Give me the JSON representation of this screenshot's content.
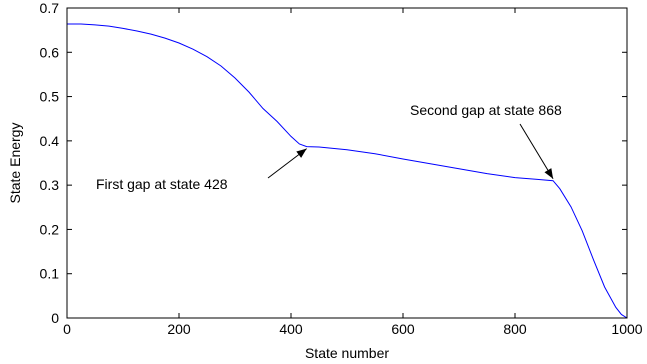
{
  "chart_data": {
    "type": "line",
    "title": "",
    "xlabel": "State number",
    "ylabel": "State Energy",
    "xlim": [
      0,
      1000
    ],
    "ylim": [
      0,
      0.7
    ],
    "xticks": [
      0,
      200,
      400,
      600,
      800,
      1000
    ],
    "yticks": [
      0,
      0.1,
      0.2,
      0.3,
      0.4,
      0.5,
      0.6,
      0.7
    ],
    "xtick_labels": [
      "0",
      "200",
      "400",
      "600",
      "800",
      "1000"
    ],
    "ytick_labels": [
      "0",
      "0.1",
      "0.2",
      "0.3",
      "0.4",
      "0.5",
      "0.6",
      "0.7"
    ],
    "grid": false,
    "line_color": "#0000ff",
    "series": [
      {
        "x": [
          0,
          25,
          50,
          75,
          100,
          125,
          150,
          175,
          200,
          225,
          250,
          275,
          300,
          325,
          350,
          375,
          400,
          415,
          428,
          450,
          500,
          550,
          600,
          650,
          700,
          750,
          800,
          840,
          868,
          880,
          900,
          920,
          940,
          960,
          980,
          990,
          1000
        ],
        "y": [
          0.664,
          0.664,
          0.662,
          0.659,
          0.654,
          0.648,
          0.641,
          0.632,
          0.621,
          0.607,
          0.59,
          0.569,
          0.542,
          0.51,
          0.473,
          0.444,
          0.41,
          0.393,
          0.387,
          0.386,
          0.38,
          0.371,
          0.359,
          0.348,
          0.337,
          0.326,
          0.317,
          0.313,
          0.31,
          0.292,
          0.251,
          0.197,
          0.132,
          0.07,
          0.024,
          0.008,
          0.0
        ]
      }
    ],
    "annotations": [
      {
        "text": "First gap at state 428",
        "x": 428,
        "y": 0.387
      },
      {
        "text": "Second gap at state 868",
        "x": 868,
        "y": 0.31
      }
    ]
  }
}
